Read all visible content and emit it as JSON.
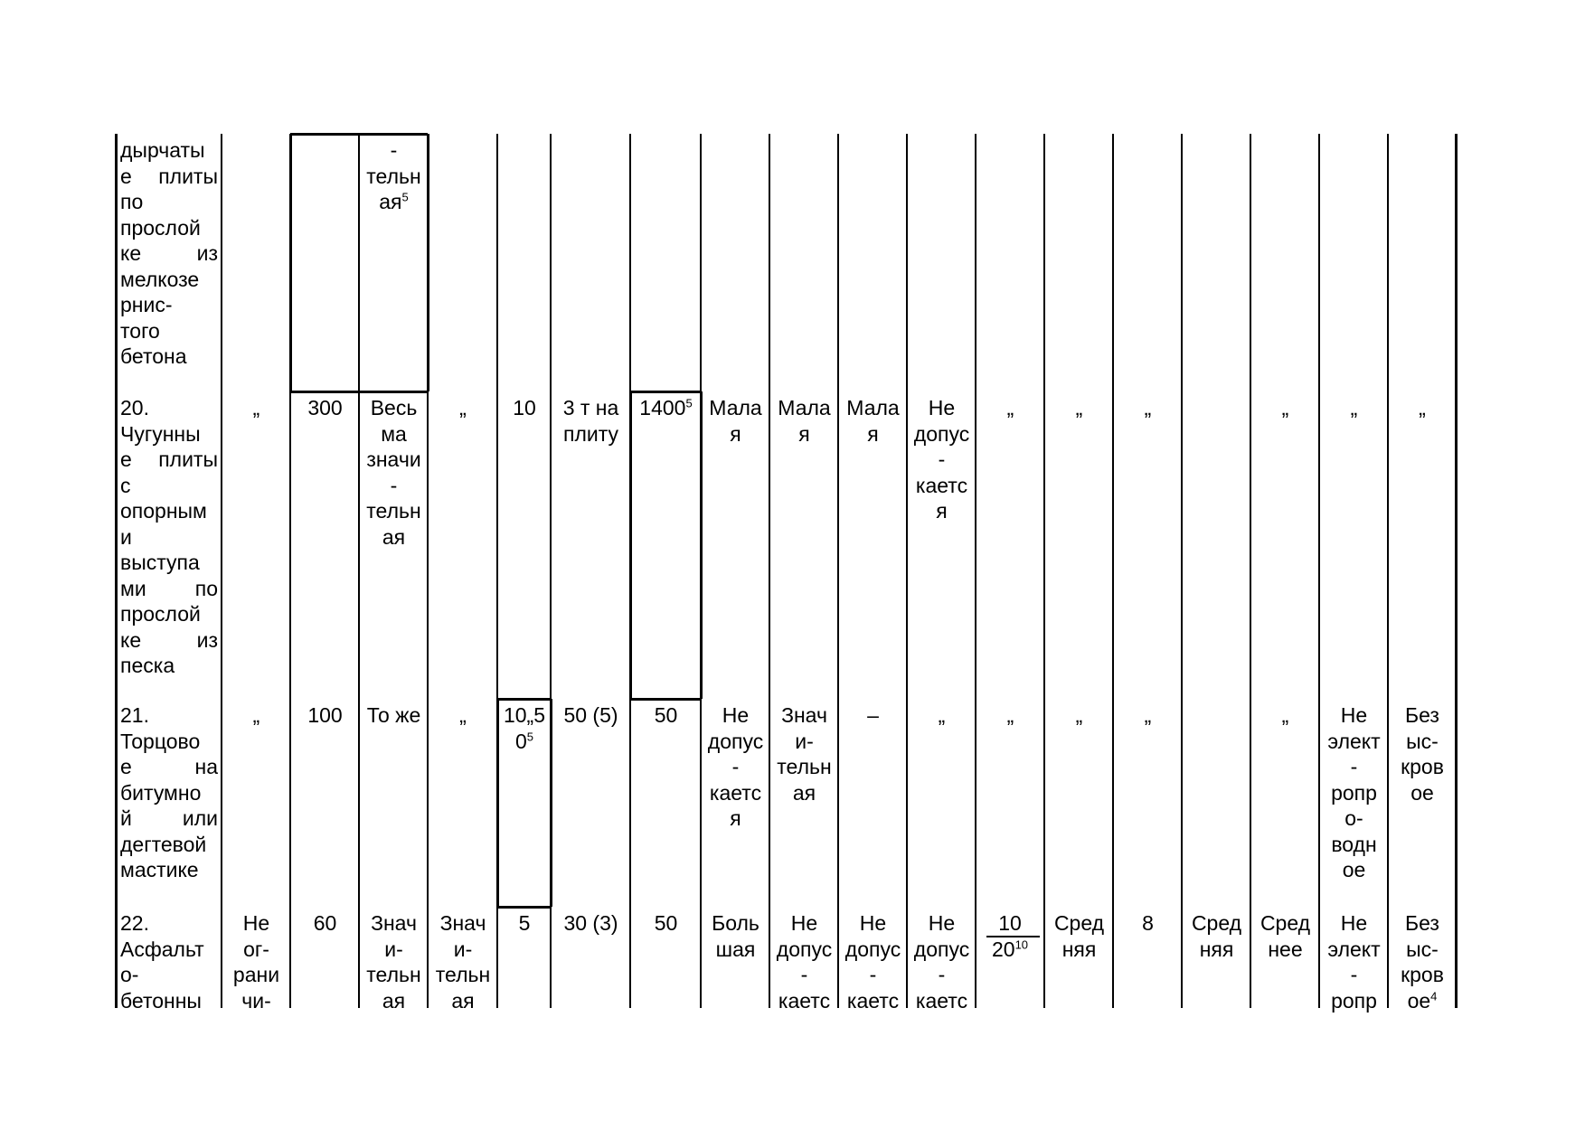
{
  "rows": [
    {
      "cells": {
        "col0": "дырчаты\nе плиты\nпо\nпрослой\nке из\nмелкозе\nрнис-\nтого\nбетона",
        "col3": "-\nтельн\nая",
        "col3_sup": "5"
      }
    },
    {
      "cells": {
        "col0": "20.\nЧугунны\nе плиты\nс\nопорным\nи\nвыступа\nми по\nпрослой\nке из\nпеска",
        "col1": "„",
        "col2": "300",
        "col3": "Весь\nма\nзначи\n-\nтельн\nая",
        "col4": "„",
        "col5": "10",
        "col6": "3 т на\nплиту",
        "col7": "1400",
        "col7_sup": "5",
        "col8": "Мала\nя",
        "col9": "Мала\nя",
        "col10": "Мала\nя",
        "col11": "Не\nдопус\n-\nкаетс\nя",
        "col12": "„",
        "col13": "„",
        "col14": "„",
        "col15": "",
        "col16": "„",
        "col17": "„",
        "col18": "„"
      }
    },
    {
      "cells": {
        "col0": "21.\nТорцово\nе на\nбитумно\nй или\nдегтевой\nмастике",
        "col1": "„",
        "col2": "100",
        "col3": "То же",
        "col4": "„",
        "col5": "10„5\n0",
        "col5_sup": "5",
        "col6": "50 (5)",
        "col7": "50",
        "col8": "Не\nдопус\n-\nкаетс\nя",
        "col9": "Знач\nи-\nтельн\nая",
        "col10": "–",
        "col11": "„",
        "col12": "„",
        "col13": "„",
        "col14": "„",
        "col15": "",
        "col16": "„",
        "col17": "Не\nэлект\n-\nропр\nо-\nводн\nое",
        "col18": "Без\nыс-\nкров\nое"
      }
    },
    {
      "cells": {
        "col0": "22.\nАсфальт\nо-\nбетонны",
        "col1": "Не\nог-\nрани\nчи-",
        "col2": "60",
        "col3": "Знач\nи-\nтельн\nая",
        "col4": "Знач\nи-\nтельн\nая",
        "col5": "5",
        "col6": "30 (3)",
        "col7": "50",
        "col8": "Боль\nшая",
        "col9": "Не\nдопус\n-\nкаетс",
        "col10": "Не\nдопус\n-\nкаетс",
        "col11": "Не\nдопус\n-\nкаетс",
        "col12_num": "10",
        "col12_den": "20",
        "col12_sup": "10",
        "col13": "Сред\nняя",
        "col14": "8",
        "col15": "Сред\nняя",
        "col16": "Сред\nнее",
        "col17": "Не\nэлект\n-\nропр",
        "col18": "Без\nыс-\nкров\nое",
        "col18_sup": "4"
      }
    }
  ]
}
